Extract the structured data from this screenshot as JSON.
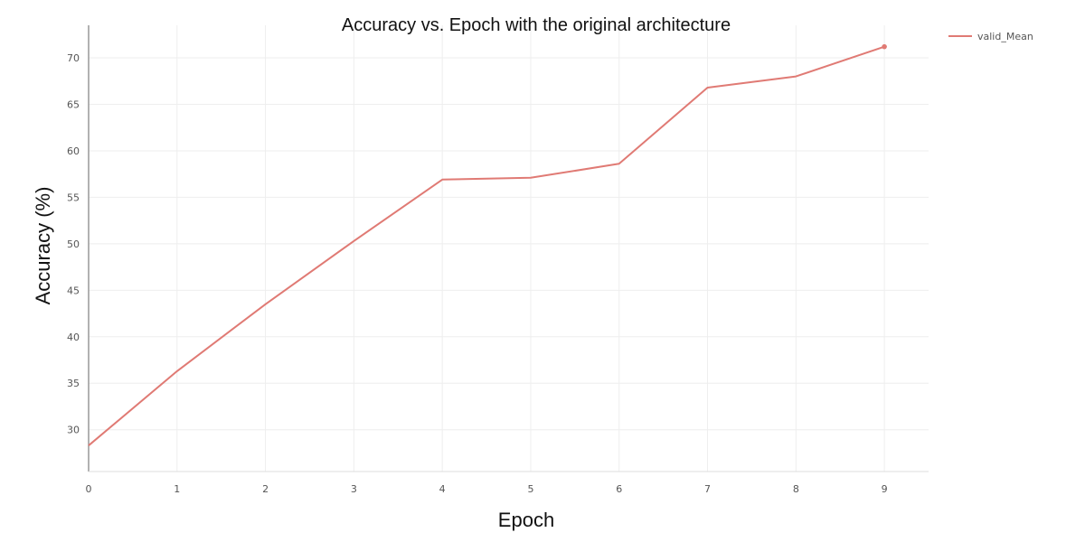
{
  "chart_data": {
    "type": "line",
    "title": "Accuracy vs. Epoch with the original architecture",
    "xlabel": "Epoch",
    "ylabel": "Accuracy (%)",
    "x": [
      0,
      1,
      2,
      3,
      4,
      5,
      6,
      7,
      8,
      9
    ],
    "series": [
      {
        "name": "valid_Mean",
        "color": "#e07a74",
        "values": [
          28.3,
          36.3,
          43.5,
          50.3,
          56.9,
          57.1,
          58.6,
          66.8,
          68.0,
          71.2
        ]
      }
    ],
    "xticks": [
      "0",
      "1",
      "2",
      "3",
      "4",
      "5",
      "6",
      "7",
      "8",
      "9"
    ],
    "yticks": [
      "30",
      "35",
      "40",
      "45",
      "50",
      "55",
      "60",
      "65",
      "70"
    ],
    "xlim": [
      0,
      9.5
    ],
    "ylim": [
      25.5,
      73.5
    ],
    "grid": true,
    "legend_position": "top-right"
  }
}
